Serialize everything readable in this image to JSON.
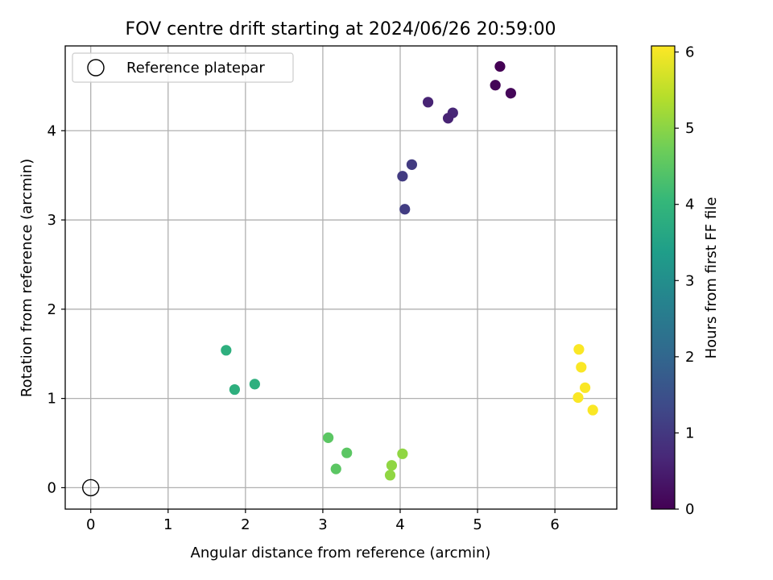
{
  "chart_data": {
    "type": "scatter",
    "title": "FOV centre drift starting at 2024/06/26 20:59:00",
    "xlabel": "Angular distance from reference (arcmin)",
    "ylabel": "Rotation from reference (arcmin)",
    "xlim": [
      -0.33,
      6.8
    ],
    "ylim": [
      -0.24,
      4.95
    ],
    "x_ticks": [
      0,
      1,
      2,
      3,
      4,
      5,
      6
    ],
    "y_ticks": [
      0,
      1,
      2,
      3,
      4
    ],
    "grid": true,
    "legend": {
      "placement": "top-left",
      "entries": [
        "Reference platepar"
      ]
    },
    "reference_point": {
      "x": 0,
      "y": 0,
      "label": "Reference platepar"
    },
    "colorbar": {
      "label": "Hours from first FF file",
      "colormap": "viridis",
      "min": 0,
      "max": 6.08,
      "ticks": [
        0,
        1,
        2,
        3,
        4,
        5,
        6
      ]
    },
    "points": [
      {
        "x": 5.29,
        "y": 4.72,
        "c": 0.0
      },
      {
        "x": 5.23,
        "y": 4.51,
        "c": 0.05
      },
      {
        "x": 5.43,
        "y": 4.42,
        "c": 0.1
      },
      {
        "x": 4.36,
        "y": 4.32,
        "c": 0.6
      },
      {
        "x": 4.68,
        "y": 4.2,
        "c": 0.65
      },
      {
        "x": 4.62,
        "y": 4.14,
        "c": 0.6
      },
      {
        "x": 4.15,
        "y": 3.62,
        "c": 1.05
      },
      {
        "x": 4.03,
        "y": 3.49,
        "c": 1.05
      },
      {
        "x": 4.06,
        "y": 3.12,
        "c": 1.1
      },
      {
        "x": 1.75,
        "y": 1.54,
        "c": 3.85
      },
      {
        "x": 1.86,
        "y": 1.1,
        "c": 3.85
      },
      {
        "x": 2.12,
        "y": 1.16,
        "c": 3.85
      },
      {
        "x": 3.07,
        "y": 0.56,
        "c": 4.5
      },
      {
        "x": 3.31,
        "y": 0.39,
        "c": 4.5
      },
      {
        "x": 3.17,
        "y": 0.21,
        "c": 4.5
      },
      {
        "x": 4.03,
        "y": 0.38,
        "c": 5.05
      },
      {
        "x": 3.89,
        "y": 0.25,
        "c": 5.05
      },
      {
        "x": 3.87,
        "y": 0.14,
        "c": 5.05
      },
      {
        "x": 6.31,
        "y": 1.55,
        "c": 6.05
      },
      {
        "x": 6.34,
        "y": 1.35,
        "c": 6.05
      },
      {
        "x": 6.39,
        "y": 1.12,
        "c": 6.05
      },
      {
        "x": 6.3,
        "y": 1.01,
        "c": 6.05
      },
      {
        "x": 6.49,
        "y": 0.87,
        "c": 6.05
      }
    ]
  }
}
